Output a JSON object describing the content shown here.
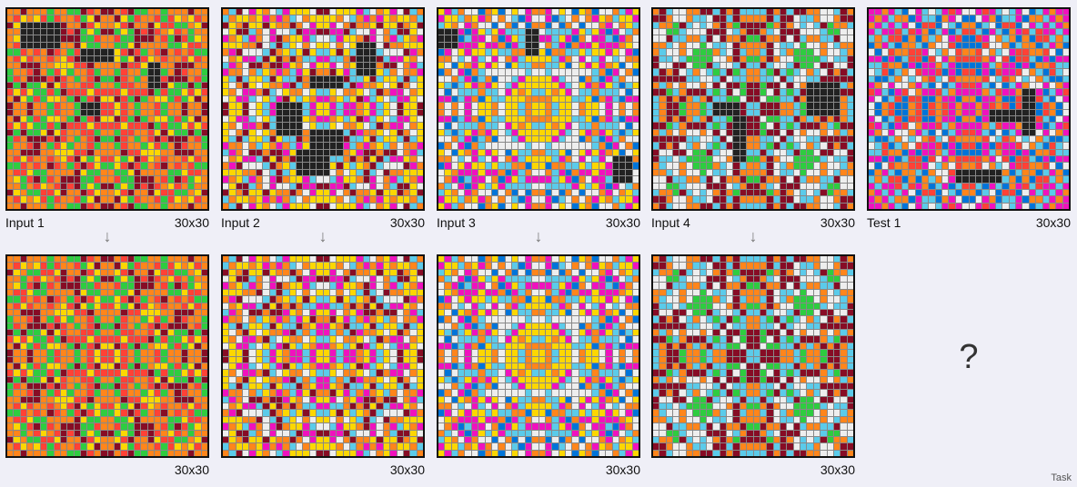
{
  "palette": {
    "black": "#222222",
    "yellow": "#fdd700",
    "green": "#2ecc40",
    "orange": "#ff851b",
    "red": "#ff4136",
    "maroon": "#870c25",
    "skyblue": "#5bcbea",
    "white": "#eeeeee",
    "magenta": "#f012be",
    "blue": "#0074d9"
  },
  "grid_schemes": {
    "input1": [
      "yellow",
      "green",
      "orange",
      "red",
      "maroon"
    ],
    "output1": [
      "yellow",
      "green",
      "orange",
      "red",
      "maroon"
    ],
    "input2": [
      "skyblue",
      "white",
      "orange",
      "magenta",
      "maroon",
      "yellow"
    ],
    "output2": [
      "skyblue",
      "white",
      "orange",
      "magenta",
      "maroon",
      "yellow"
    ],
    "input3": [
      "skyblue",
      "yellow",
      "magenta",
      "blue",
      "white",
      "orange"
    ],
    "output3": [
      "skyblue",
      "yellow",
      "magenta",
      "blue",
      "white",
      "orange"
    ],
    "input4": [
      "skyblue",
      "maroon",
      "green",
      "white",
      "orange"
    ],
    "output4": [
      "skyblue",
      "maroon",
      "green",
      "white",
      "orange"
    ],
    "test1": [
      "red",
      "orange",
      "magenta",
      "blue",
      "white",
      "skyblue"
    ]
  },
  "labels": {
    "input1": "Input 1",
    "input2": "Input 2",
    "input3": "Input 3",
    "input4": "Input 4",
    "test1": "Test 1",
    "size": "30x30",
    "arrow": "↓",
    "unknown": "?",
    "corner": "Task"
  }
}
